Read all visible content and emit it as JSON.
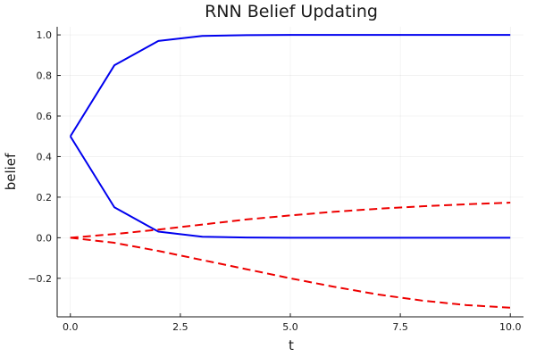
{
  "chart_data": {
    "type": "line",
    "title": "RNN Belief Updating",
    "xlabel": "t",
    "ylabel": "belief",
    "xlim": [
      -0.3,
      10.3
    ],
    "ylim": [
      -0.39,
      1.04
    ],
    "grid": true,
    "legend": "none",
    "xticks": [
      0.0,
      2.5,
      5.0,
      7.5,
      10.0
    ],
    "xtick_labels": [
      "0.0",
      "2.5",
      "5.0",
      "7.5",
      "10.0"
    ],
    "yticks": [
      -0.2,
      0.0,
      0.2,
      0.4,
      0.6,
      0.8,
      1.0
    ],
    "ytick_labels": [
      "−0.2",
      "0.0",
      "0.2",
      "0.4",
      "0.6",
      "0.8",
      "1.0"
    ],
    "x": [
      0,
      1,
      2,
      3,
      4,
      5,
      6,
      7,
      8,
      9,
      10
    ],
    "series": [
      {
        "color": "#0000ee",
        "style": "solid",
        "values": [
          0.5,
          0.85,
          0.97,
          0.995,
          0.999,
          1.0,
          1.0,
          1.0,
          1.0,
          1.0,
          1.0
        ]
      },
      {
        "color": "#0000ee",
        "style": "solid",
        "values": [
          0.5,
          0.15,
          0.03,
          0.005,
          0.001,
          0.0,
          0.0,
          0.0,
          0.0,
          0.0,
          0.0
        ]
      },
      {
        "color": "#ee0000",
        "style": "dashed",
        "values": [
          0.0,
          0.018,
          0.04,
          0.065,
          0.09,
          0.11,
          0.128,
          0.143,
          0.155,
          0.165,
          0.173
        ]
      },
      {
        "color": "#ee0000",
        "style": "dashed",
        "values": [
          0.0,
          -0.025,
          -0.065,
          -0.11,
          -0.155,
          -0.2,
          -0.242,
          -0.28,
          -0.31,
          -0.332,
          -0.345
        ]
      }
    ]
  }
}
